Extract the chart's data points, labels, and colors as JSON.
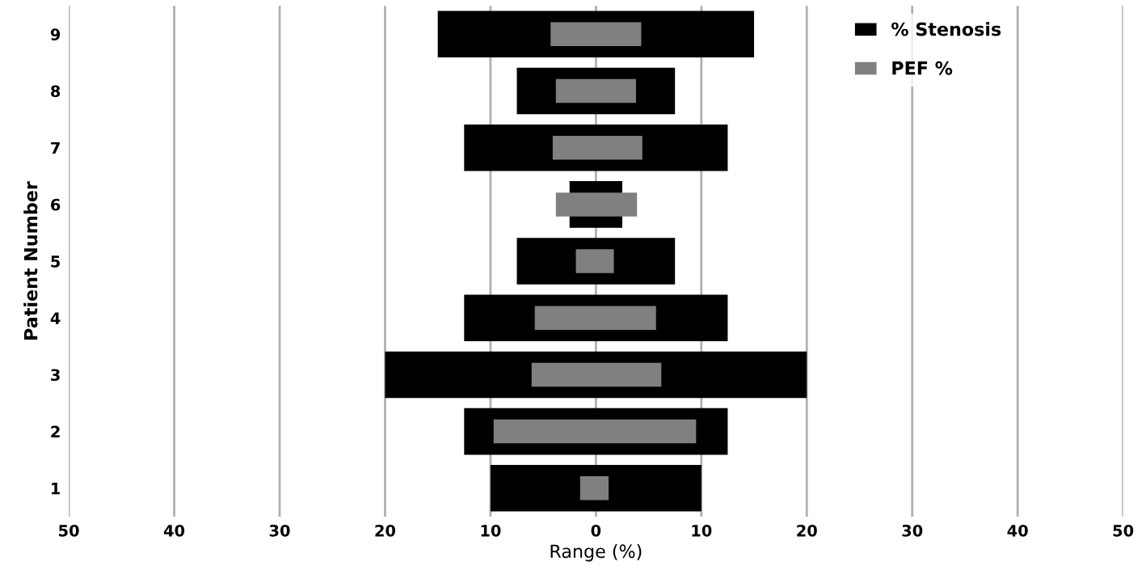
{
  "chart_data": {
    "type": "bar",
    "orientation": "horizontal",
    "xlabel": "Range (%)",
    "ylabel": "Patient Number",
    "categories": [
      "9",
      "8",
      "7",
      "6",
      "5",
      "4",
      "3",
      "2",
      "1"
    ],
    "series": [
      {
        "name": "% Stenosis",
        "color": "#000000",
        "base": [
          -15,
          -7.5,
          -12.5,
          -2.5,
          -7.5,
          -12.5,
          -20,
          -12.5,
          -10
        ],
        "values": [
          30,
          15,
          25,
          5,
          15,
          25,
          40,
          25,
          20
        ]
      },
      {
        "name": "PEF %",
        "color": "#808080",
        "base": [
          -4.3,
          -3.8,
          -4.1,
          -3.8,
          -1.9,
          -5.8,
          -6.1,
          -9.7,
          -1.5
        ],
        "values": [
          8.6,
          7.6,
          8.5,
          7.7,
          3.6,
          11.5,
          12.3,
          19.2,
          2.7
        ]
      }
    ],
    "xlim": [
      -50,
      50
    ],
    "xticks": [
      {
        "value": -50,
        "label": "50"
      },
      {
        "value": -40,
        "label": "40"
      },
      {
        "value": -30,
        "label": "30"
      },
      {
        "value": -20,
        "label": "20"
      },
      {
        "value": -10,
        "label": "10"
      },
      0,
      10,
      20,
      30,
      40,
      50
    ],
    "grid": "x",
    "legend": "top right"
  }
}
